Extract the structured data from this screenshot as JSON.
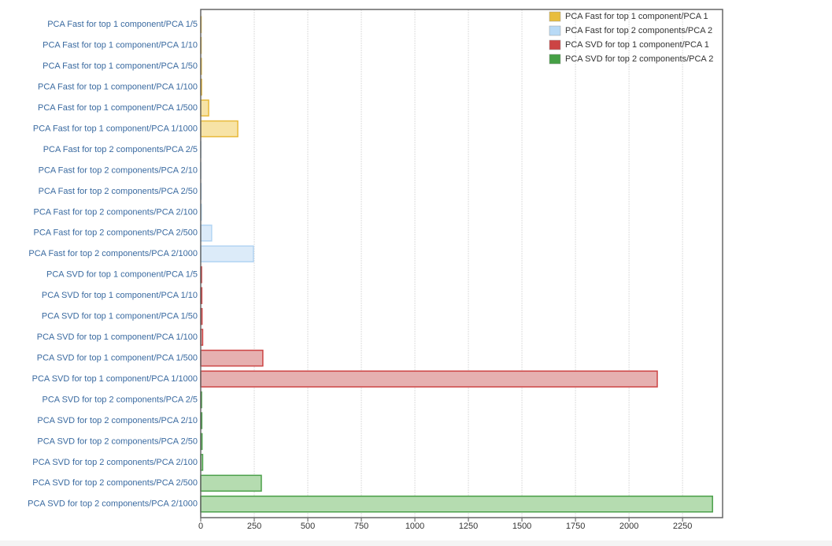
{
  "chart_data": {
    "type": "bar",
    "orientation": "horizontal",
    "categories": [
      "PCA Fast for top 1 component/PCA 1/5",
      "PCA Fast for top 1 component/PCA 1/10",
      "PCA Fast for top 1 component/PCA 1/50",
      "PCA Fast for top 1 component/PCA 1/100",
      "PCA Fast for top 1 component/PCA 1/500",
      "PCA Fast for top 1 component/PCA 1/1000",
      "PCA Fast for top 2 components/PCA 2/5",
      "PCA Fast for top 2 components/PCA 2/10",
      "PCA Fast for top 2 components/PCA 2/50",
      "PCA Fast for top 2 components/PCA 2/100",
      "PCA Fast for top 2 components/PCA 2/500",
      "PCA Fast for top 2 components/PCA 2/1000",
      "PCA SVD for top 1 component/PCA 1/5",
      "PCA SVD for top 1 component/PCA 1/10",
      "PCA SVD for top 1 component/PCA 1/50",
      "PCA SVD for top 1 component/PCA 1/100",
      "PCA SVD for top 1 component/PCA 1/500",
      "PCA SVD for top 1 component/PCA 1/1000",
      "PCA SVD for top 2 components/PCA 2/5",
      "PCA SVD for top 2 components/PCA 2/10",
      "PCA SVD for top 2 components/PCA 2/50",
      "PCA SVD for top 2 components/PCA 2/100",
      "PCA SVD for top 2 components/PCA 2/500",
      "PCA SVD for top 2 components/PCA 2/1000"
    ],
    "series": [
      {
        "name": "PCA Fast for top 1 component/PCA 1",
        "color": "#e8bd3c",
        "fill": "#f7e3a6",
        "stroke": "#e8b93a",
        "values": [
          2,
          2,
          3,
          4,
          37,
          173,
          null,
          null,
          null,
          null,
          null,
          null,
          null,
          null,
          null,
          null,
          null,
          null,
          null,
          null,
          null,
          null,
          null,
          null
        ]
      },
      {
        "name": "PCA Fast for top 2 components/PCA 2",
        "color": "#b8daf6",
        "fill": "#dcebf9",
        "stroke": "#b3d5f3",
        "values": [
          null,
          null,
          null,
          null,
          null,
          null,
          1,
          1,
          2,
          3,
          51,
          246,
          null,
          null,
          null,
          null,
          null,
          null,
          null,
          null,
          null,
          null,
          null,
          null
        ]
      },
      {
        "name": "PCA SVD for top 1 component/PCA 1",
        "color": "#cc4444",
        "fill": "#e6b0b0",
        "stroke": "#cc4444",
        "values": [
          null,
          null,
          null,
          null,
          null,
          null,
          null,
          null,
          null,
          null,
          null,
          null,
          4,
          5,
          6,
          9,
          290,
          2132,
          null,
          null,
          null,
          null,
          null,
          null
        ]
      },
      {
        "name": "PCA SVD for top 2 components/PCA 2",
        "color": "#45a045",
        "fill": "#b5dcb0",
        "stroke": "#4ba04a",
        "values": [
          null,
          null,
          null,
          null,
          null,
          null,
          null,
          null,
          null,
          null,
          null,
          null,
          null,
          null,
          null,
          null,
          null,
          null,
          4,
          5,
          6,
          9,
          283,
          2390
        ]
      }
    ],
    "xlim": [
      0,
      2437
    ],
    "xticks": [
      0,
      250,
      500,
      750,
      1000,
      1250,
      1500,
      1750,
      2000,
      2250
    ],
    "grid": true,
    "legend": "top-right"
  }
}
